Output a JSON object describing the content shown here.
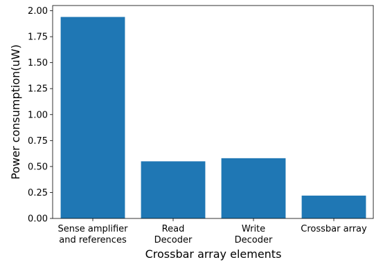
{
  "chart_data": {
    "type": "bar",
    "title": "",
    "xlabel": "Crossbar array elements",
    "ylabel": "Power consumption(uW)",
    "categories": [
      [
        "Sense amplifier",
        "and references"
      ],
      [
        "Read",
        "Decoder"
      ],
      [
        "Write",
        "Decoder"
      ],
      [
        "Crossbar array"
      ]
    ],
    "values": [
      1.94,
      0.55,
      0.58,
      0.22
    ],
    "ylim": [
      0,
      2.05
    ],
    "yticks": [
      "0.00",
      "0.25",
      "0.50",
      "0.75",
      "1.00",
      "1.25",
      "1.50",
      "1.75",
      "2.00"
    ],
    "bar_color": "#1f77b4",
    "grid": false,
    "legend": "none"
  }
}
